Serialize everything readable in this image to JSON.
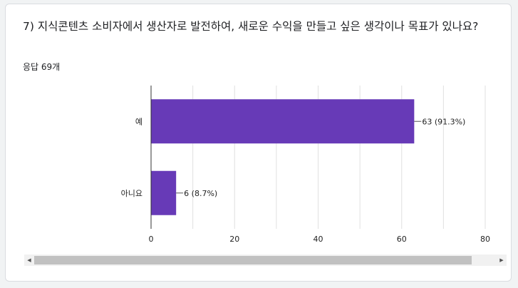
{
  "question": {
    "title": "7) 지식콘텐츠 소비자에서 생산자로 발전하여, 새로운 수익을 만들고 싶은 생각이나 목표가 있나요?",
    "response_count": "응답 69개"
  },
  "colors": {
    "bar": "#673ab7",
    "grid": "#e0e0e0",
    "axis": "#333333"
  },
  "chart_data": {
    "type": "bar",
    "orientation": "horizontal",
    "categories": [
      "예",
      "아니요"
    ],
    "values": [
      63,
      6
    ],
    "data_labels": [
      "63 (91.3%)",
      "6 (8.7%)"
    ],
    "xlim": [
      0,
      80
    ],
    "x_ticks": [
      0,
      20,
      40,
      60,
      80
    ],
    "grid": true,
    "legend": "none"
  },
  "scrollbar": {
    "left_arrow": "◀",
    "right_arrow": "▶"
  }
}
